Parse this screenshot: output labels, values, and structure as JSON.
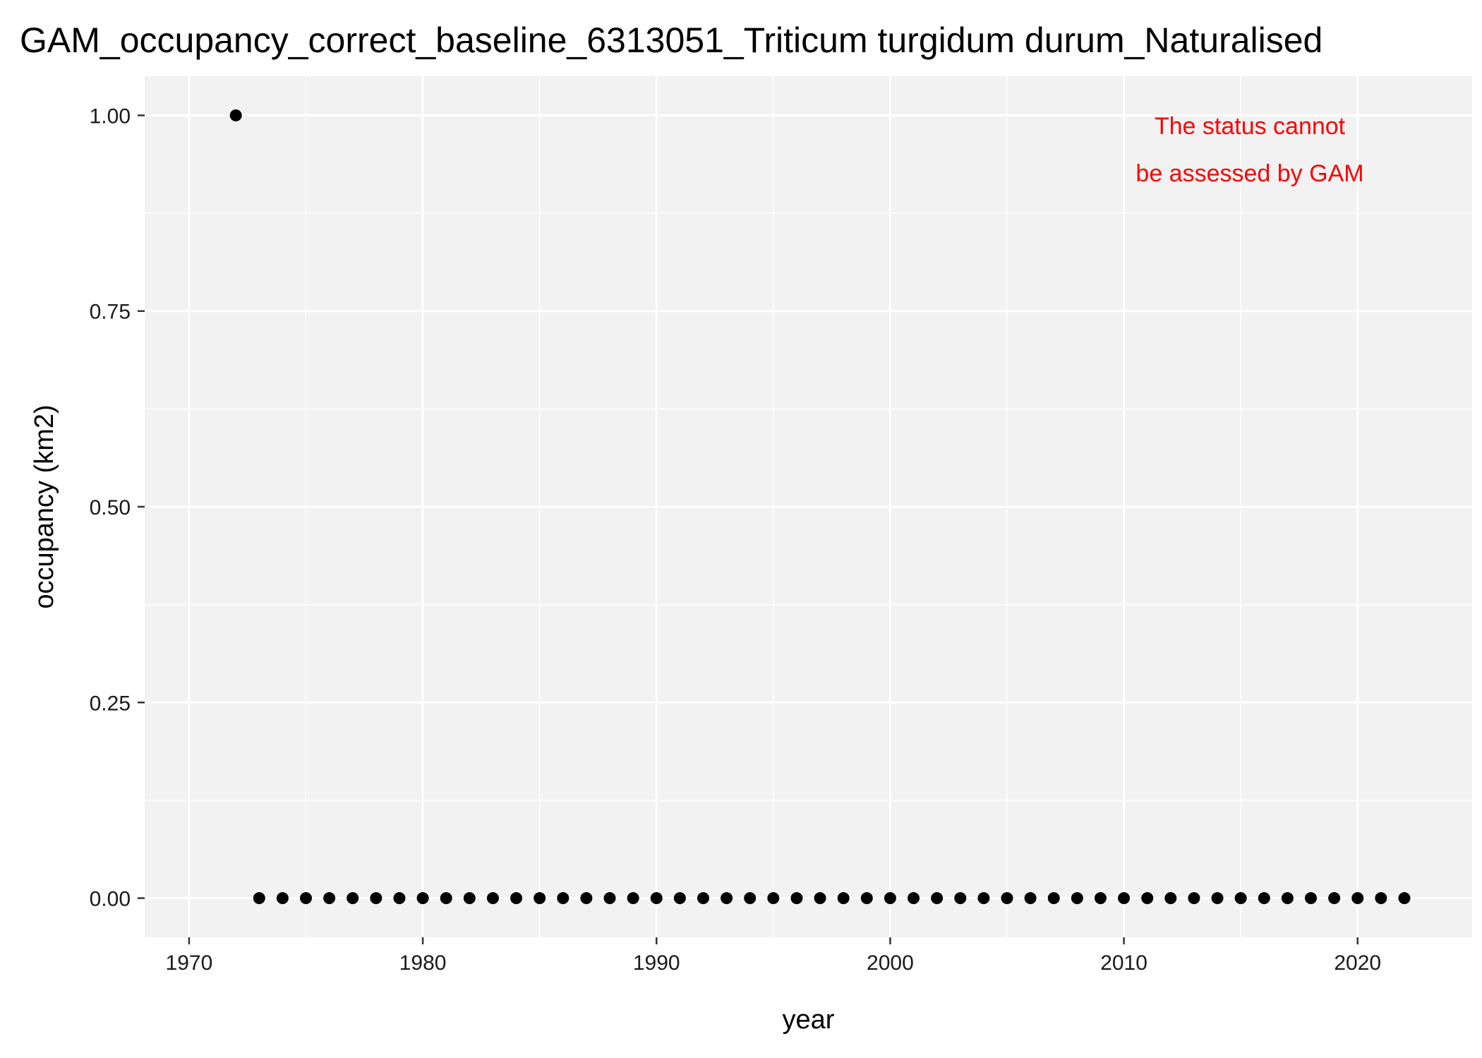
{
  "chart_data": {
    "type": "scatter",
    "title": "GAM_occupancy_correct_baseline_6313051_Triticum turgidum durum_Naturalised",
    "xlabel": "year",
    "ylabel": "occupancy (km2)",
    "xlim": [
      1968.1,
      2024.9
    ],
    "ylim": [
      -0.05,
      1.05
    ],
    "x_major_ticks": [
      1970,
      1980,
      1990,
      2000,
      2010,
      2020
    ],
    "x_tick_labels": [
      "1970",
      "1980",
      "1990",
      "2000",
      "2010",
      "2020"
    ],
    "x_minor_ticks": [
      1975,
      1985,
      1995,
      2005,
      2015
    ],
    "y_major_ticks": [
      0,
      0.25,
      0.5,
      0.75,
      1.0
    ],
    "y_tick_labels": [
      "0.00",
      "0.25",
      "0.50",
      "0.75",
      "1.00"
    ],
    "y_minor_ticks": [
      0.125,
      0.375,
      0.625,
      0.875
    ],
    "grid": true,
    "series": [
      {
        "name": "occupancy",
        "x": [
          1972,
          1973,
          1974,
          1975,
          1976,
          1977,
          1978,
          1979,
          1980,
          1981,
          1982,
          1983,
          1984,
          1985,
          1986,
          1987,
          1988,
          1989,
          1990,
          1991,
          1992,
          1993,
          1994,
          1995,
          1996,
          1997,
          1998,
          1999,
          2000,
          2001,
          2002,
          2003,
          2004,
          2005,
          2006,
          2007,
          2008,
          2009,
          2010,
          2011,
          2012,
          2013,
          2014,
          2015,
          2016,
          2017,
          2018,
          2019,
          2020,
          2021,
          2022
        ],
        "y": [
          1,
          0,
          0,
          0,
          0,
          0,
          0,
          0,
          0,
          0,
          0,
          0,
          0,
          0,
          0,
          0,
          0,
          0,
          0,
          0,
          0,
          0,
          0,
          0,
          0,
          0,
          0,
          0,
          0,
          0,
          0,
          0,
          0,
          0,
          0,
          0,
          0,
          0,
          0,
          0,
          0,
          0,
          0,
          0,
          0,
          0,
          0,
          0,
          0,
          0,
          0
        ]
      }
    ],
    "annotation": {
      "lines": [
        "The status cannot",
        "be assessed by GAM"
      ],
      "color": "#ff0000",
      "placement": "top-right"
    },
    "colors": {
      "panel_background": "#f2f2f2",
      "grid": "#ffffff",
      "points": "#000000"
    }
  }
}
